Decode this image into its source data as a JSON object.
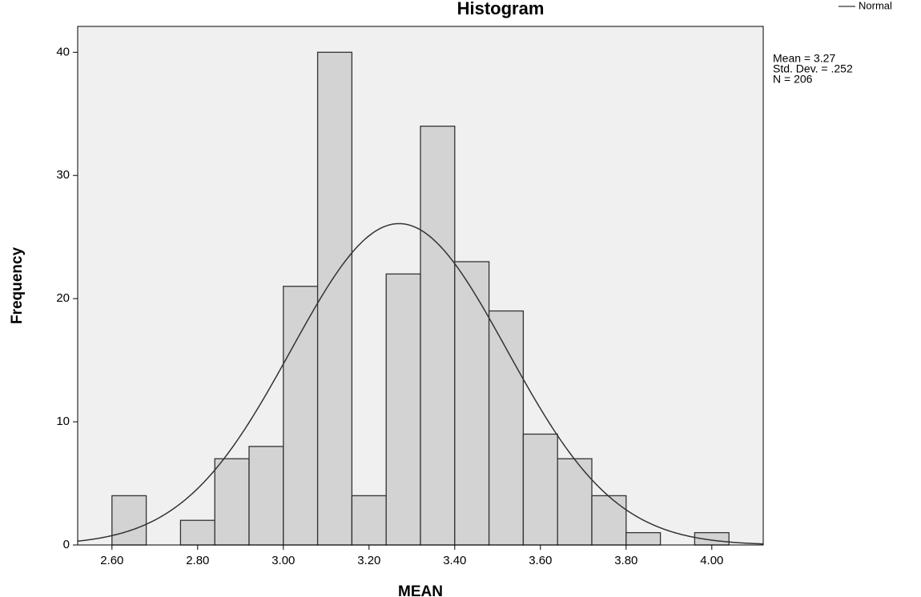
{
  "chart_data": {
    "type": "histogram",
    "title": "Histogram",
    "x_label": "MEAN",
    "y_label": "Frequency",
    "bins": [
      2.6,
      2.68,
      2.76,
      2.84,
      2.92,
      3.0,
      3.08,
      3.16,
      3.24,
      3.32,
      3.4,
      3.48,
      3.56,
      3.64,
      3.72,
      3.8,
      3.88,
      3.96,
      4.04
    ],
    "values": [
      4,
      0,
      2,
      7,
      8,
      21,
      40,
      4,
      22,
      34,
      23,
      19,
      9,
      7,
      4,
      1,
      0,
      1
    ],
    "color": "#d3d3d3",
    "xlim": [
      2.52,
      4.12
    ],
    "xticks": [
      {
        "value": 2.6,
        "label": "2.60"
      },
      {
        "value": 2.8,
        "label": "2.80"
      },
      {
        "value": 3.0,
        "label": "3.00"
      },
      {
        "value": 3.2,
        "label": "3.20"
      },
      {
        "value": 3.4,
        "label": "3.40"
      },
      {
        "value": 3.6,
        "label": "3.60"
      },
      {
        "value": 3.8,
        "label": "3.80"
      },
      {
        "value": 4.0,
        "label": "4.00"
      }
    ],
    "ylim": [
      0,
      42.1
    ],
    "yticks": [
      0,
      10,
      20,
      30,
      40
    ],
    "normal": {
      "name": "Normal",
      "mean": 3.27,
      "std_dev": 0.252,
      "n": 206
    },
    "stats_text": [
      "Mean = 3.27",
      "Std. Dev. = .252",
      "N = 206"
    ]
  }
}
